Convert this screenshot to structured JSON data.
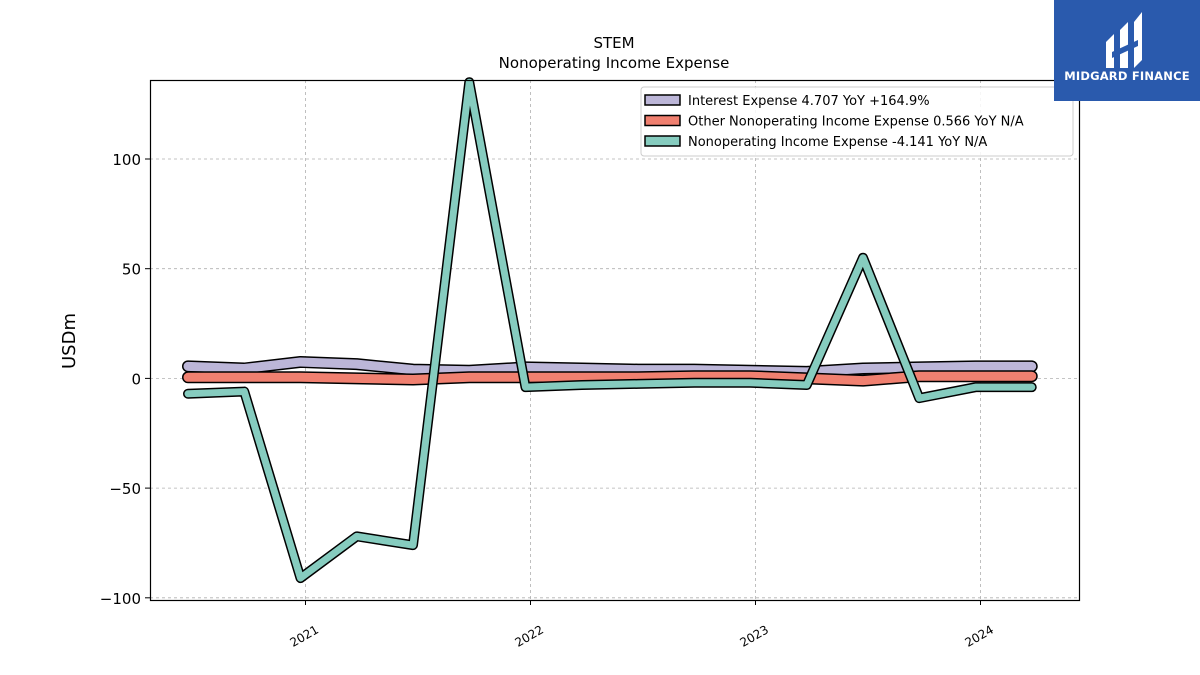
{
  "brand": {
    "name": "MIDGARD FINANCE",
    "bg_color": "#2a5aad"
  },
  "chart_data": {
    "type": "line",
    "title": "STEM",
    "subtitle": "Nonoperating Income Expense",
    "ylabel": "USDm",
    "xlabel": "",
    "ylim": [
      -101,
      136
    ],
    "yticks": [
      100,
      50,
      0,
      -50,
      -100
    ],
    "ytick_labels": [
      "100",
      "50",
      "0",
      "−50",
      "−100"
    ],
    "xticks": [
      "2021",
      "2022",
      "2023",
      "2024"
    ],
    "grid": true,
    "legend_position": "top-right",
    "x": [
      "2020-Q3",
      "2020-Q4",
      "2021-Q1",
      "2021-Q2",
      "2021-Q3",
      "2021-Q4",
      "2022-Q1",
      "2022-Q2",
      "2022-Q3",
      "2022-Q4",
      "2023-Q1",
      "2023-Q2",
      "2023-Q3",
      "2023-Q4",
      "2024-Q1",
      "2024-Q2"
    ],
    "series": [
      {
        "name": "Interest Expense",
        "legend_label": "Interest Expense  4.707 YoY +164.9%",
        "color": "#bcb6d8",
        "values": [
          5.5,
          4.5,
          7.5,
          6.5,
          4.0,
          3.5,
          5.0,
          4.5,
          4.0,
          4.0,
          3.5,
          3.0,
          4.5,
          5.0,
          5.5,
          5.5
        ]
      },
      {
        "name": "Other Nonoperating Income Expense",
        "legend_label": "Other Nonoperating Income Expense  0.566 YoY N/A",
        "color": "#f08070",
        "values": [
          0.5,
          0.5,
          0.5,
          0.0,
          -0.5,
          0.5,
          0.5,
          0.5,
          0.5,
          1.0,
          1.0,
          0.0,
          -1.0,
          1.0,
          1.0,
          1.0
        ]
      },
      {
        "name": "Nonoperating Income Expense",
        "legend_label": "Nonoperating Income Expense  -4.141 YoY N/A",
        "color": "#86ccbf",
        "values": [
          -7,
          -6,
          -91,
          -72,
          -76,
          135,
          -4,
          -3,
          -2.5,
          -2,
          -2,
          -3,
          55,
          -9,
          -4,
          -4
        ]
      }
    ]
  }
}
